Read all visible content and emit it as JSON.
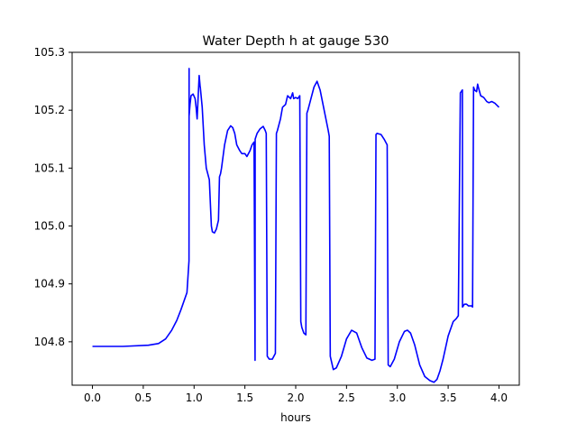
{
  "chart_data": {
    "type": "line",
    "title": "Water Depth h at gauge 530",
    "xlabel": "hours",
    "ylabel": "",
    "xlim": [
      -0.2,
      4.2
    ],
    "ylim": [
      104.725,
      105.3
    ],
    "xticks": [
      0.0,
      0.5,
      1.0,
      1.5,
      2.0,
      2.5,
      3.0,
      3.5,
      4.0
    ],
    "xtick_labels": [
      "0.0",
      "0.5",
      "1.0",
      "1.5",
      "2.0",
      "2.5",
      "3.0",
      "3.5",
      "4.0"
    ],
    "yticks": [
      104.8,
      104.9,
      105.0,
      105.1,
      105.2,
      105.3
    ],
    "ytick_labels": [
      "104.8",
      "104.9",
      "105.0",
      "105.1",
      "105.2",
      "105.3"
    ],
    "grid": false,
    "legend": "none",
    "series": [
      {
        "color": "#0000ff",
        "x": [
          0.0,
          0.3,
          0.55,
          0.65,
          0.72,
          0.78,
          0.83,
          0.87,
          0.9,
          0.93,
          0.95,
          0.951,
          0.951,
          0.96,
          0.97,
          0.99,
          1.01,
          1.02,
          1.03,
          1.05,
          1.06,
          1.061,
          1.08,
          1.1,
          1.12,
          1.15,
          1.17,
          1.18,
          1.2,
          1.22,
          1.24,
          1.25,
          1.26,
          1.27,
          1.3,
          1.33,
          1.36,
          1.38,
          1.4,
          1.42,
          1.45,
          1.47,
          1.5,
          1.52,
          1.55,
          1.57,
          1.59,
          1.6,
          1.601,
          1.62,
          1.65,
          1.68,
          1.7,
          1.71,
          1.72,
          1.74,
          1.77,
          1.8,
          1.81,
          1.82,
          1.85,
          1.87,
          1.9,
          1.92,
          1.95,
          1.97,
          1.98,
          2.0,
          2.02,
          2.04,
          2.05,
          2.06,
          2.08,
          2.1,
          2.11,
          2.12,
          2.15,
          2.18,
          2.21,
          2.24,
          2.28,
          2.32,
          2.33,
          2.34,
          2.37,
          2.4,
          2.45,
          2.5,
          2.55,
          2.6,
          2.65,
          2.7,
          2.75,
          2.78,
          2.79,
          2.8,
          2.84,
          2.87,
          2.9,
          2.91,
          2.93,
          2.97,
          3.02,
          3.07,
          3.1,
          3.13,
          3.17,
          3.22,
          3.27,
          3.32,
          3.36,
          3.39,
          3.42,
          3.45,
          3.5,
          3.55,
          3.58,
          3.6,
          3.62,
          3.64,
          3.641,
          3.66,
          3.68,
          3.7,
          3.73,
          3.74,
          3.75,
          3.76,
          3.78,
          3.79,
          3.8,
          3.82,
          3.85,
          3.88,
          3.9,
          3.93,
          3.96,
          4.0
        ],
        "y": [
          104.792,
          104.792,
          104.794,
          104.797,
          104.805,
          104.82,
          104.837,
          104.855,
          104.87,
          104.885,
          104.94,
          105.272,
          105.19,
          105.21,
          105.225,
          105.228,
          105.22,
          105.205,
          105.185,
          105.26,
          105.24,
          105.24,
          105.205,
          105.14,
          105.1,
          105.08,
          105.0,
          104.99,
          104.988,
          104.995,
          105.01,
          105.085,
          105.09,
          105.1,
          105.14,
          105.165,
          105.173,
          105.17,
          105.16,
          105.14,
          105.13,
          105.125,
          105.125,
          105.12,
          105.13,
          105.14,
          105.145,
          104.768,
          105.15,
          105.16,
          105.168,
          105.172,
          105.165,
          105.16,
          104.775,
          104.77,
          104.77,
          104.78,
          105.16,
          105.165,
          105.185,
          105.205,
          105.21,
          105.225,
          105.22,
          105.23,
          105.22,
          105.222,
          105.22,
          105.225,
          104.835,
          104.825,
          104.815,
          104.812,
          105.195,
          105.2,
          105.22,
          105.24,
          105.25,
          105.235,
          105.2,
          105.165,
          105.155,
          104.775,
          104.752,
          104.755,
          104.775,
          104.805,
          104.82,
          104.815,
          104.79,
          104.772,
          104.768,
          104.77,
          105.158,
          105.16,
          105.158,
          105.15,
          105.14,
          104.76,
          104.757,
          104.77,
          104.8,
          104.818,
          104.82,
          104.815,
          104.795,
          104.76,
          104.74,
          104.733,
          104.73,
          104.735,
          104.75,
          104.77,
          104.81,
          104.835,
          104.84,
          104.845,
          105.23,
          105.235,
          104.86,
          104.865,
          104.865,
          104.862,
          104.862,
          104.86,
          105.24,
          105.235,
          105.232,
          105.245,
          105.238,
          105.225,
          105.222,
          105.215,
          105.213,
          105.215,
          105.212,
          105.205
        ]
      }
    ]
  }
}
